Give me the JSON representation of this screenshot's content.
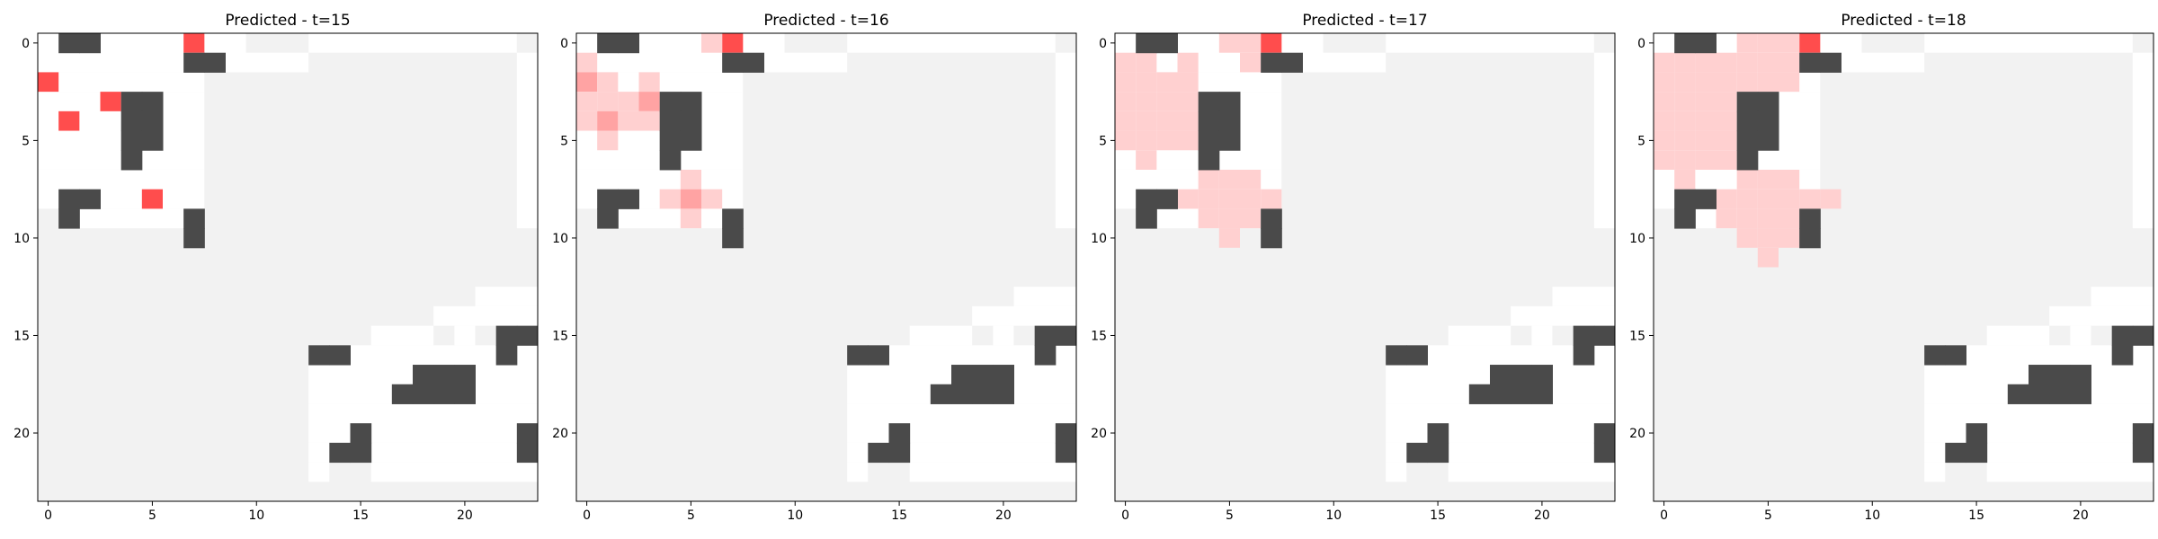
{
  "figure": {
    "colors": {
      "background": "#ffffff",
      "unexplored": "#f2f2f2",
      "free": "#ffffff",
      "wall": "#4a4a4a",
      "predicted_strong": "#ff4d4d",
      "predicted_mid": "#ffa3a3",
      "predicted_light": "#ffd0d0"
    }
  },
  "chart_data": [
    {
      "type": "heatmap",
      "title": "Predicted - t=15",
      "grid_size": [
        24,
        24
      ],
      "xticks": [
        0,
        5,
        10,
        15,
        20
      ],
      "yticks": [
        0,
        5,
        10,
        15,
        20
      ],
      "free_rects": [
        [
          0,
          0,
          10,
          2
        ],
        [
          0,
          2,
          8,
          1
        ],
        [
          0,
          3,
          4,
          1
        ],
        [
          0,
          4,
          4,
          5
        ],
        [
          4,
          3,
          4,
          6
        ],
        [
          2,
          9,
          2,
          1
        ],
        [
          6,
          9,
          2,
          1
        ],
        [
          0,
          0,
          14,
          24
        ],
        [
          23,
          1,
          1,
          1
        ],
        [
          10,
          0,
          2,
          1
        ],
        [
          13,
          0,
          11,
          1
        ]
      ],
      "walls": [
        [
          1,
          0
        ],
        [
          2,
          0
        ],
        [
          7,
          1
        ],
        [
          8,
          1
        ],
        [
          4,
          3
        ],
        [
          5,
          3
        ],
        [
          4,
          4
        ],
        [
          5,
          4
        ],
        [
          4,
          5
        ],
        [
          5,
          5
        ],
        [
          4,
          6
        ],
        [
          1,
          8
        ],
        [
          2,
          8
        ],
        [
          1,
          9
        ],
        [
          7,
          9
        ],
        [
          7,
          10
        ]
      ],
      "predicted": [
        [
          7,
          0,
          1.0
        ],
        [
          0,
          2,
          1.0
        ],
        [
          3,
          3,
          1.0
        ],
        [
          1,
          4,
          1.0
        ],
        [
          5,
          8,
          1.0
        ]
      ]
    },
    {
      "type": "heatmap",
      "title": "Predicted - t=16",
      "grid_size": [
        24,
        24
      ],
      "xticks": [
        0,
        5,
        10,
        15,
        20
      ],
      "yticks": [
        0,
        5,
        10,
        15,
        20
      ],
      "walls": [
        [
          1,
          0
        ],
        [
          2,
          0
        ],
        [
          7,
          1
        ],
        [
          8,
          1
        ],
        [
          4,
          3
        ],
        [
          5,
          3
        ],
        [
          4,
          4
        ],
        [
          5,
          4
        ],
        [
          4,
          5
        ],
        [
          5,
          5
        ],
        [
          4,
          6
        ],
        [
          1,
          8
        ],
        [
          2,
          8
        ],
        [
          1,
          9
        ],
        [
          7,
          9
        ],
        [
          7,
          10
        ]
      ],
      "predicted": [
        [
          7,
          0,
          1.0
        ],
        [
          6,
          0,
          0.4
        ],
        [
          0,
          1,
          0.4
        ],
        [
          0,
          2,
          0.6
        ],
        [
          1,
          2,
          0.4
        ],
        [
          3,
          2,
          0.4
        ],
        [
          0,
          3,
          0.4
        ],
        [
          1,
          3,
          0.4
        ],
        [
          2,
          3,
          0.4
        ],
        [
          3,
          3,
          0.6
        ],
        [
          0,
          4,
          0.4
        ],
        [
          1,
          4,
          0.6
        ],
        [
          2,
          4,
          0.4
        ],
        [
          3,
          4,
          0.4
        ],
        [
          1,
          5,
          0.4
        ],
        [
          5,
          7,
          0.4
        ],
        [
          4,
          8,
          0.4
        ],
        [
          5,
          8,
          0.6
        ],
        [
          6,
          8,
          0.4
        ],
        [
          5,
          9,
          0.4
        ]
      ]
    },
    {
      "type": "heatmap",
      "title": "Predicted - t=17",
      "grid_size": [
        24,
        24
      ],
      "xticks": [
        0,
        5,
        10,
        15,
        20
      ],
      "yticks": [
        0,
        5,
        10,
        15,
        20
      ],
      "walls": [
        [
          1,
          0
        ],
        [
          2,
          0
        ],
        [
          7,
          1
        ],
        [
          8,
          1
        ],
        [
          4,
          3
        ],
        [
          5,
          3
        ],
        [
          4,
          4
        ],
        [
          5,
          4
        ],
        [
          4,
          5
        ],
        [
          5,
          5
        ],
        [
          4,
          6
        ],
        [
          1,
          8
        ],
        [
          2,
          8
        ],
        [
          1,
          9
        ],
        [
          7,
          9
        ],
        [
          7,
          10
        ]
      ],
      "predicted": [
        [
          7,
          0,
          1.0
        ],
        [
          5,
          0,
          0.4
        ],
        [
          6,
          0,
          0.4
        ],
        [
          0,
          1,
          0.4
        ],
        [
          1,
          1,
          0.3
        ],
        [
          3,
          1,
          0.3
        ],
        [
          6,
          1,
          0.3
        ],
        [
          0,
          2,
          0.4
        ],
        [
          1,
          2,
          0.4
        ],
        [
          2,
          2,
          0.3
        ],
        [
          3,
          2,
          0.4
        ],
        [
          0,
          3,
          0.4
        ],
        [
          1,
          3,
          0.4
        ],
        [
          2,
          3,
          0.4
        ],
        [
          3,
          3,
          0.4
        ],
        [
          0,
          4,
          0.4
        ],
        [
          1,
          4,
          0.4
        ],
        [
          2,
          4,
          0.4
        ],
        [
          3,
          4,
          0.4
        ],
        [
          0,
          5,
          0.3
        ],
        [
          1,
          5,
          0.3
        ],
        [
          2,
          5,
          0.3
        ],
        [
          3,
          5,
          0.3
        ],
        [
          1,
          6,
          0.3
        ],
        [
          4,
          7,
          0.3
        ],
        [
          5,
          7,
          0.3
        ],
        [
          6,
          7,
          0.3
        ],
        [
          3,
          8,
          0.3
        ],
        [
          4,
          8,
          0.3
        ],
        [
          5,
          8,
          0.3
        ],
        [
          6,
          8,
          0.3
        ],
        [
          7,
          8,
          0.3
        ],
        [
          4,
          9,
          0.3
        ],
        [
          5,
          9,
          0.3
        ],
        [
          6,
          9,
          0.3
        ],
        [
          5,
          10,
          0.3
        ]
      ]
    },
    {
      "type": "heatmap",
      "title": "Predicted - t=18",
      "grid_size": [
        24,
        24
      ],
      "xticks": [
        0,
        5,
        10,
        15,
        20
      ],
      "yticks": [
        0,
        5,
        10,
        15,
        20
      ],
      "walls": [
        [
          1,
          0
        ],
        [
          2,
          0
        ],
        [
          7,
          1
        ],
        [
          8,
          1
        ],
        [
          4,
          3
        ],
        [
          5,
          3
        ],
        [
          4,
          4
        ],
        [
          5,
          4
        ],
        [
          4,
          5
        ],
        [
          5,
          5
        ],
        [
          4,
          6
        ],
        [
          1,
          8
        ],
        [
          2,
          8
        ],
        [
          1,
          9
        ],
        [
          7,
          9
        ],
        [
          7,
          10
        ]
      ],
      "predicted": [
        [
          7,
          0,
          1.0
        ],
        [
          6,
          0,
          0.4
        ],
        [
          4,
          0,
          0.3
        ],
        [
          5,
          0,
          0.3
        ],
        [
          0,
          1,
          0.4
        ],
        [
          1,
          1,
          0.3
        ],
        [
          2,
          1,
          0.3
        ],
        [
          3,
          1,
          0.3
        ],
        [
          4,
          1,
          0.3
        ],
        [
          5,
          1,
          0.3
        ],
        [
          6,
          1,
          0.3
        ],
        [
          0,
          2,
          0.4
        ],
        [
          1,
          2,
          0.4
        ],
        [
          2,
          2,
          0.3
        ],
        [
          3,
          2,
          0.3
        ],
        [
          4,
          2,
          0.3
        ],
        [
          5,
          2,
          0.3
        ],
        [
          6,
          2,
          0.3
        ],
        [
          0,
          3,
          0.4
        ],
        [
          1,
          3,
          0.4
        ],
        [
          2,
          3,
          0.4
        ],
        [
          3,
          3,
          0.4
        ],
        [
          0,
          4,
          0.4
        ],
        [
          1,
          4,
          0.4
        ],
        [
          2,
          4,
          0.4
        ],
        [
          3,
          4,
          0.3
        ],
        [
          0,
          5,
          0.3
        ],
        [
          1,
          5,
          0.3
        ],
        [
          2,
          5,
          0.3
        ],
        [
          3,
          5,
          0.3
        ],
        [
          0,
          6,
          0.3
        ],
        [
          1,
          6,
          0.3
        ],
        [
          2,
          6,
          0.3
        ],
        [
          3,
          6,
          0.3
        ],
        [
          1,
          7,
          0.3
        ],
        [
          4,
          7,
          0.3
        ],
        [
          5,
          7,
          0.3
        ],
        [
          6,
          7,
          0.3
        ],
        [
          3,
          8,
          0.3
        ],
        [
          4,
          8,
          0.3
        ],
        [
          5,
          8,
          0.3
        ],
        [
          6,
          8,
          0.3
        ],
        [
          7,
          8,
          0.3
        ],
        [
          8,
          8,
          0.3
        ],
        [
          3,
          9,
          0.3
        ],
        [
          4,
          9,
          0.3
        ],
        [
          5,
          9,
          0.3
        ],
        [
          6,
          9,
          0.3
        ],
        [
          4,
          10,
          0.3
        ],
        [
          5,
          10,
          0.3
        ],
        [
          6,
          10,
          0.3
        ],
        [
          5,
          11,
          0.3
        ]
      ]
    }
  ]
}
